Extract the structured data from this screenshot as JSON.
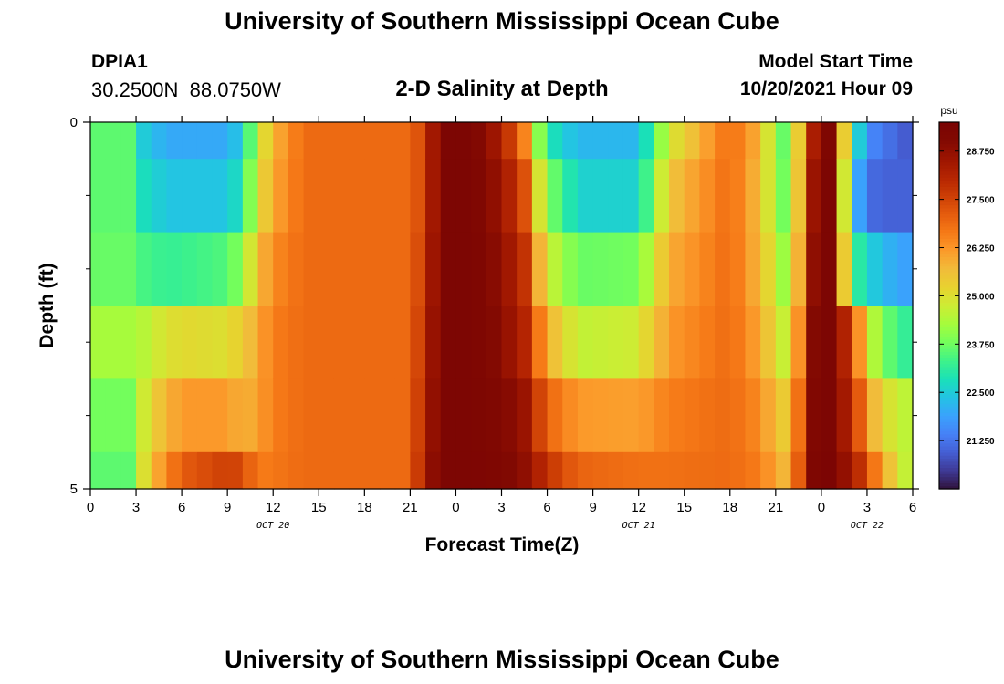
{
  "header": {
    "title_top": "University of Southern Mississippi Ocean Cube",
    "title_bottom": "University of Southern Mississippi Ocean Cube",
    "station_id": "DPIA1",
    "station_coords": "30.2500N  88.0750W",
    "plot_title": "2-D Salinity at Depth",
    "model_start_label": "Model Start Time",
    "model_start_value": "10/20/2021 Hour 09"
  },
  "colors": {
    "background": "#ffffff",
    "colormap": [
      "#30123b",
      "#3e3994",
      "#455ed3",
      "#4681f7",
      "#3aa2fc",
      "#23c3e4",
      "#1ae0b8",
      "#3ef28a",
      "#73fe5c",
      "#a5fc3c",
      "#cced34",
      "#e8d22f",
      "#f1bc3a",
      "#fb9b2b",
      "#f67a17",
      "#e55c0e",
      "#cc3e05",
      "#b52502",
      "#9d1501",
      "#820902",
      "#7a0403"
    ]
  },
  "chart_data": {
    "type": "heatmap",
    "title": "2-D Salinity at Depth",
    "xlabel": "Forecast Time(Z)",
    "ylabel": "Depth (ft)",
    "x_ticks": [
      "0",
      "3",
      "6",
      "9",
      "12",
      "15",
      "18",
      "21",
      "0",
      "3",
      "6",
      "9",
      "12",
      "15",
      "18",
      "21",
      "0",
      "3",
      "6"
    ],
    "x_range_hours": [
      0,
      54
    ],
    "date_labels": [
      {
        "text": "OCT 20",
        "hour": 12
      },
      {
        "text": "OCT 21",
        "hour": 36
      },
      {
        "text": "OCT 22",
        "hour": 51
      }
    ],
    "y_ticks": [
      "0",
      "5"
    ],
    "y_range_ft": [
      0,
      5
    ],
    "y_minor_ticks_ft": [
      1,
      2,
      3,
      4
    ],
    "colorbar": {
      "units": "psu",
      "min": 20.0,
      "max": 29.5,
      "tick_labels": [
        "28.750",
        "27.500",
        "26.250",
        "25.000",
        "23.750",
        "22.500",
        "21.250"
      ],
      "tick_values": [
        28.75,
        27.5,
        26.25,
        25.0,
        23.75,
        22.5,
        21.25
      ]
    },
    "depth_levels_ft": [
      0.0,
      1.0,
      2.0,
      3.0,
      4.0,
      5.0
    ],
    "keypoints_hours": [
      0,
      2.8,
      3.5,
      5,
      6.5,
      9,
      10,
      11,
      12,
      14,
      21,
      22,
      23,
      25,
      27,
      28.5,
      29,
      30,
      32,
      36,
      38,
      42,
      44,
      45,
      46,
      47,
      47.5,
      48,
      48.5,
      50,
      51,
      52,
      54
    ],
    "salinity_psu_by_depth": [
      [
        23.6,
        23.6,
        22.5,
        22.0,
        22.0,
        22.0,
        22.6,
        24.5,
        25.8,
        26.9,
        26.9,
        27.6,
        29.3,
        29.3,
        28.3,
        26.5,
        25.0,
        23.0,
        22.2,
        22.2,
        24.8,
        26.9,
        25.8,
        24.0,
        23.4,
        27.3,
        28.3,
        29.2,
        29.2,
        23.4,
        21.6,
        21.3,
        20.8
      ],
      [
        23.6,
        23.6,
        22.8,
        22.4,
        22.4,
        22.4,
        23.0,
        24.9,
        26.0,
        26.9,
        26.9,
        27.6,
        29.3,
        29.3,
        28.6,
        27.3,
        25.8,
        24.0,
        22.6,
        22.6,
        25.5,
        26.9,
        25.6,
        24.2,
        23.4,
        27.6,
        28.6,
        29.3,
        29.3,
        22.6,
        21.2,
        21.0,
        21.0
      ],
      [
        23.7,
        23.7,
        23.4,
        23.2,
        23.3,
        23.5,
        24.1,
        25.6,
        26.4,
        26.9,
        26.9,
        27.8,
        29.3,
        29.3,
        28.8,
        27.8,
        26.8,
        24.8,
        23.7,
        23.8,
        25.9,
        26.9,
        25.7,
        24.6,
        23.8,
        27.9,
        28.8,
        29.3,
        29.3,
        23.4,
        22.7,
        22.2,
        21.8
      ],
      [
        24.3,
        24.3,
        24.5,
        25.0,
        25.1,
        25.0,
        25.4,
        26.0,
        26.6,
        26.9,
        26.9,
        28.0,
        29.3,
        29.3,
        28.9,
        28.1,
        27.4,
        25.9,
        24.6,
        24.8,
        26.2,
        26.9,
        26.0,
        25.0,
        24.4,
        28.2,
        29.0,
        29.3,
        29.3,
        27.6,
        25.0,
        23.8,
        23.0
      ],
      [
        23.8,
        23.8,
        24.8,
        25.9,
        26.2,
        26.2,
        25.8,
        26.1,
        26.6,
        26.9,
        26.9,
        28.2,
        29.3,
        29.3,
        29.1,
        28.6,
        28.0,
        27.0,
        26.2,
        26.1,
        26.6,
        26.9,
        26.4,
        25.6,
        25.2,
        28.4,
        29.1,
        29.3,
        29.3,
        28.0,
        26.3,
        25.1,
        24.4
      ],
      [
        23.6,
        23.6,
        25.0,
        26.6,
        27.2,
        27.6,
        27.4,
        26.6,
        26.7,
        26.9,
        26.9,
        28.4,
        29.3,
        29.3,
        29.2,
        28.8,
        28.5,
        27.8,
        27.0,
        26.8,
        26.8,
        26.9,
        26.6,
        26.0,
        25.6,
        28.6,
        29.2,
        29.4,
        29.4,
        28.4,
        27.4,
        26.0,
        24.2
      ]
    ]
  }
}
